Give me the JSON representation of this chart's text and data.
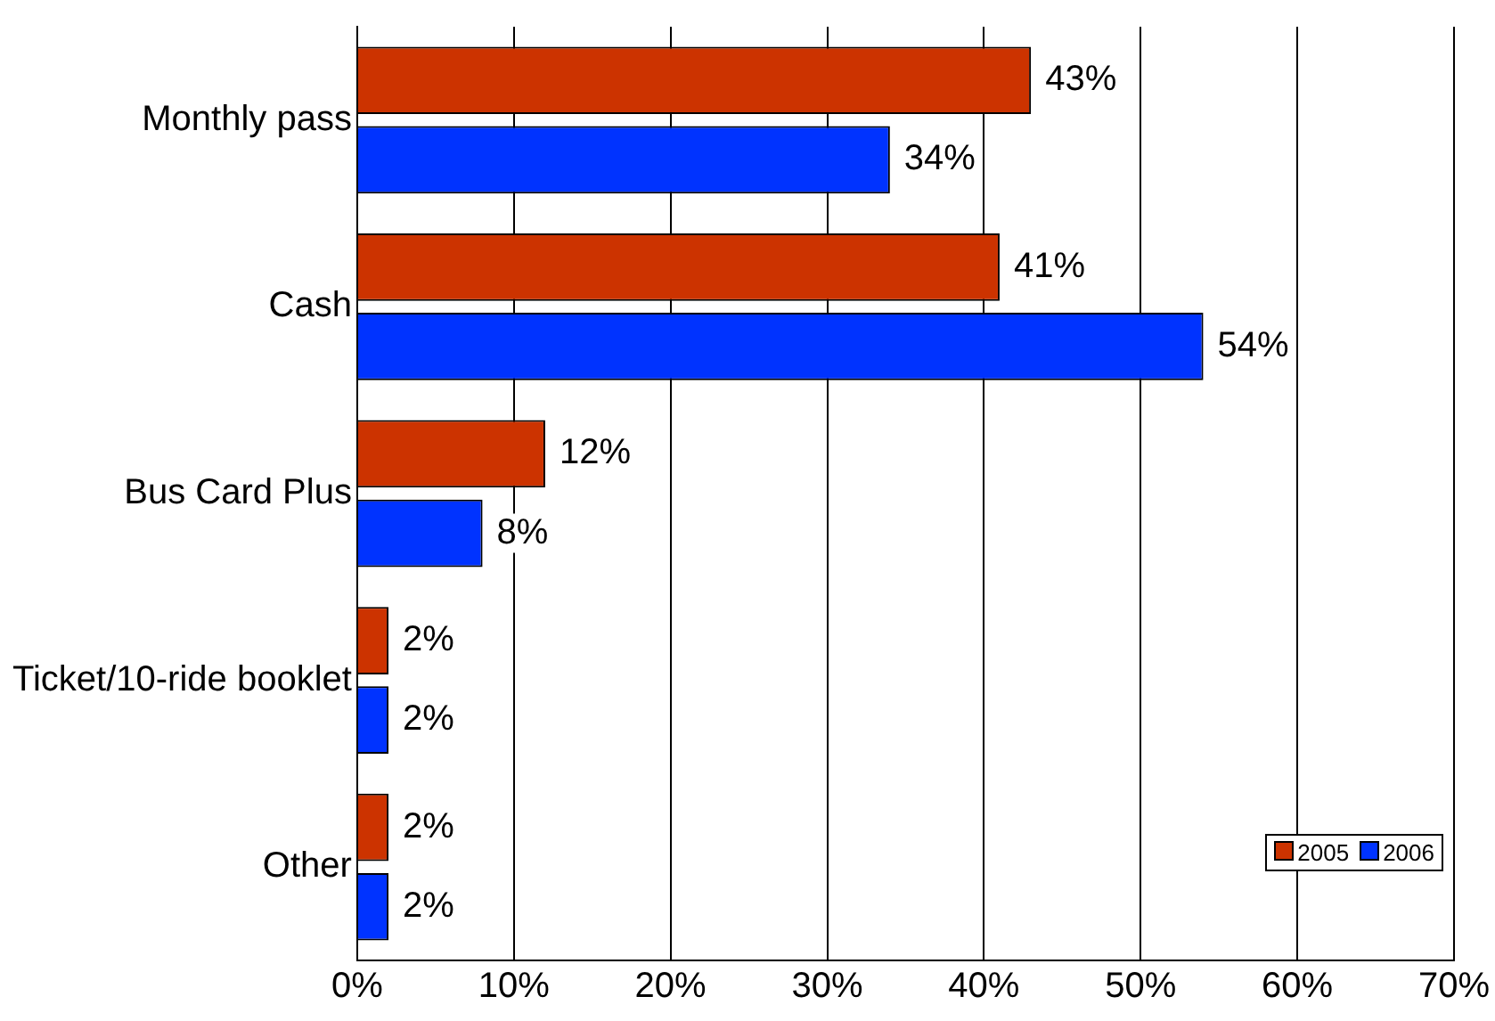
{
  "chart_data": {
    "type": "bar",
    "orientation": "horizontal",
    "categories": [
      "Monthly pass",
      "Cash",
      "Bus Card Plus",
      "Ticket/10-ride booklet",
      "Other"
    ],
    "series": [
      {
        "name": "2005",
        "color": "#cc3300",
        "values": [
          43,
          41,
          12,
          2,
          2
        ],
        "value_labels": [
          "43%",
          "41%",
          "12%",
          "2%",
          "2%"
        ]
      },
      {
        "name": "2006",
        "color": "#0033ff",
        "values": [
          34,
          54,
          8,
          2,
          2
        ],
        "value_labels": [
          "34%",
          "54%",
          "8%",
          "2%",
          "2%"
        ]
      }
    ],
    "xlim": [
      0,
      70
    ],
    "xticks": [
      {
        "value": 0,
        "label": "0%"
      },
      {
        "value": 10,
        "label": "10%"
      },
      {
        "value": 20,
        "label": "20%"
      },
      {
        "value": 30,
        "label": "30%"
      },
      {
        "value": 40,
        "label": "40%"
      },
      {
        "value": 50,
        "label": "50%"
      },
      {
        "value": 60,
        "label": "60%"
      },
      {
        "value": 70,
        "label": "70%"
      }
    ],
    "grid": "x",
    "legend": "bottom right"
  }
}
